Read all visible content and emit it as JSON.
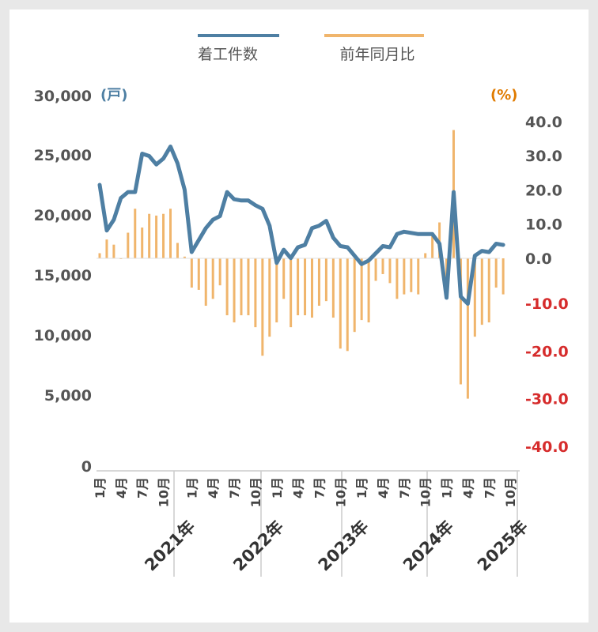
{
  "chart_data": {
    "type": "bar+line",
    "title": "",
    "legend": {
      "placement": "top",
      "entries": [
        {
          "name": "着工件数",
          "color": "#4e7fa3",
          "kind": "line"
        },
        {
          "name": "前年同月比",
          "color": "#f0b56c",
          "kind": "bar"
        }
      ]
    },
    "left_axis": {
      "unit": "(戸)",
      "unit_color": "#4e7fa3",
      "range": [
        0,
        30000
      ],
      "ticks": [
        "0",
        "5,000",
        "10,000",
        "15,000",
        "20,000",
        "25,000",
        "30,000"
      ],
      "tick_values": [
        0,
        5000,
        10000,
        15000,
        20000,
        25000,
        30000
      ]
    },
    "right_axis": {
      "unit": "(%)",
      "unit_color": "#e07b00",
      "positive_color": "#555555",
      "negative_color": "#d62c2c",
      "ticks": [
        "40.0",
        "30.0",
        "20.0",
        "10.0",
        "0.0",
        "-10.0",
        "-20.0",
        "-30.0",
        "-40.0"
      ],
      "tick_values": [
        40,
        30,
        20,
        10,
        0,
        -10,
        -20,
        -30,
        -40
      ]
    },
    "month_ticks": [
      "1月",
      "4月",
      "7月",
      "10月"
    ],
    "year_labels": [
      "2021年",
      "2022年",
      "2023年",
      "2024年",
      "2025年"
    ],
    "series": [
      {
        "name": "着工件数",
        "values": [
          22500,
          18700,
          19600,
          21400,
          21900,
          21900,
          25100,
          24900,
          24200,
          24700,
          25700,
          24300,
          22100,
          16900,
          17900,
          18900,
          19600,
          19900,
          21900,
          21300,
          21200,
          21200,
          20800,
          20500,
          19100,
          16000,
          17100,
          16400,
          17300,
          17500,
          18900,
          19100,
          19500,
          18100,
          17400,
          17300,
          16600,
          15900,
          16200,
          16800,
          17400,
          17300,
          18400,
          18600,
          18500,
          18400,
          18400,
          18400,
          17600,
          13100,
          21900,
          13200,
          12600,
          16600,
          17000,
          16900,
          17600,
          17500
        ]
      },
      {
        "name": "前年同月比",
        "values": [
          1.5,
          5.5,
          4.0,
          0.0,
          7.5,
          14.5,
          9.0,
          13.0,
          12.5,
          13.0,
          14.5,
          4.5,
          0.5,
          -6.5,
          -7.0,
          -10.5,
          -9.0,
          -6.0,
          -12.5,
          -14.0,
          -12.5,
          -12.5,
          -15.0,
          -21.0,
          -17.0,
          -14.0,
          -9.0,
          -15.0,
          -12.5,
          -12.5,
          -13.0,
          -10.5,
          -9.5,
          -13.0,
          -19.5,
          -20.0,
          -16.0,
          -13.5,
          -14.0,
          -5.0,
          -3.5,
          -5.5,
          -9.0,
          -8.0,
          -7.5,
          -8.0,
          1.5,
          7.5,
          10.5,
          -7.0,
          37.5,
          -27.0,
          -30.0,
          -17.0,
          -14.5,
          -14.0,
          -6.5,
          -8.0
        ]
      }
    ]
  }
}
